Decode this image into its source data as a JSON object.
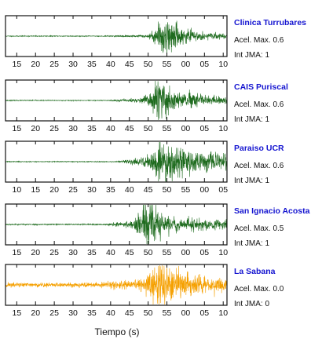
{
  "chart_data": {
    "type": "line",
    "xlabel": "Tiempo (s)",
    "acel_label": "Acel. Max.",
    "int_label": "Int JMA:",
    "series": [
      {
        "name": "Clinica Turrubares",
        "color": "#1e6b1e",
        "acel": "0.6",
        "int": "1",
        "tick_labels": [
          "15",
          "20",
          "25",
          "30",
          "35",
          "40",
          "45",
          "50",
          "55",
          "00",
          "05",
          "10"
        ],
        "first_tick_second": 15,
        "time_range": [
          12,
          71
        ],
        "onset": 40,
        "peak": 54.5,
        "decay": 4.0,
        "peak_amp": 1.0,
        "pre_amp": 0.08,
        "noise": 0.02,
        "seed": 11
      },
      {
        "name": "CAIS Puriscal",
        "color": "#1e6b1e",
        "acel": "0.6",
        "int": "1",
        "tick_labels": [
          "15",
          "20",
          "25",
          "30",
          "35",
          "40",
          "45",
          "50",
          "55",
          "00",
          "05",
          "10"
        ],
        "first_tick_second": 15,
        "time_range": [
          12,
          71
        ],
        "onset": 39.5,
        "peak": 53.0,
        "decay": 4.5,
        "peak_amp": 1.0,
        "pre_amp": 0.16,
        "noise": 0.02,
        "seed": 23
      },
      {
        "name": "Paraiso UCR",
        "color": "#1e6b1e",
        "acel": "0.6",
        "int": "1",
        "tick_labels": [
          "10",
          "15",
          "20",
          "25",
          "30",
          "35",
          "40",
          "45",
          "50",
          "55",
          "00",
          "05"
        ],
        "first_tick_second": 10,
        "time_range": [
          7,
          66
        ],
        "onset": 36.5,
        "peak": 48.5,
        "decay": 6.0,
        "peak_amp": 1.0,
        "pre_amp": 0.3,
        "noise": 0.02,
        "seed": 37
      },
      {
        "name": "San Ignacio Acosta",
        "color": "#1e6b1e",
        "acel": "0.5",
        "int": "1",
        "tick_labels": [
          "15",
          "20",
          "25",
          "30",
          "35",
          "40",
          "45",
          "50",
          "55",
          "00",
          "05",
          "10"
        ],
        "first_tick_second": 15,
        "time_range": [
          12,
          71
        ],
        "onset": 38.0,
        "peak": 49.5,
        "decay": 4.5,
        "peak_amp": 1.0,
        "pre_amp": 0.2,
        "noise": 0.03,
        "seed": 53
      },
      {
        "name": "La Sabana",
        "color": "#f5a000",
        "acel": "0.0",
        "int": "0",
        "tick_labels": [
          "15",
          "20",
          "25",
          "30",
          "35",
          "40",
          "45",
          "50",
          "55",
          "00",
          "05",
          "10"
        ],
        "first_tick_second": 15,
        "time_range": [
          12,
          71
        ],
        "onset": 36.0,
        "peak": 52.5,
        "decay": 7.0,
        "peak_amp": 1.0,
        "pre_amp": 0.15,
        "noise": 0.12,
        "seed": 71
      }
    ]
  }
}
